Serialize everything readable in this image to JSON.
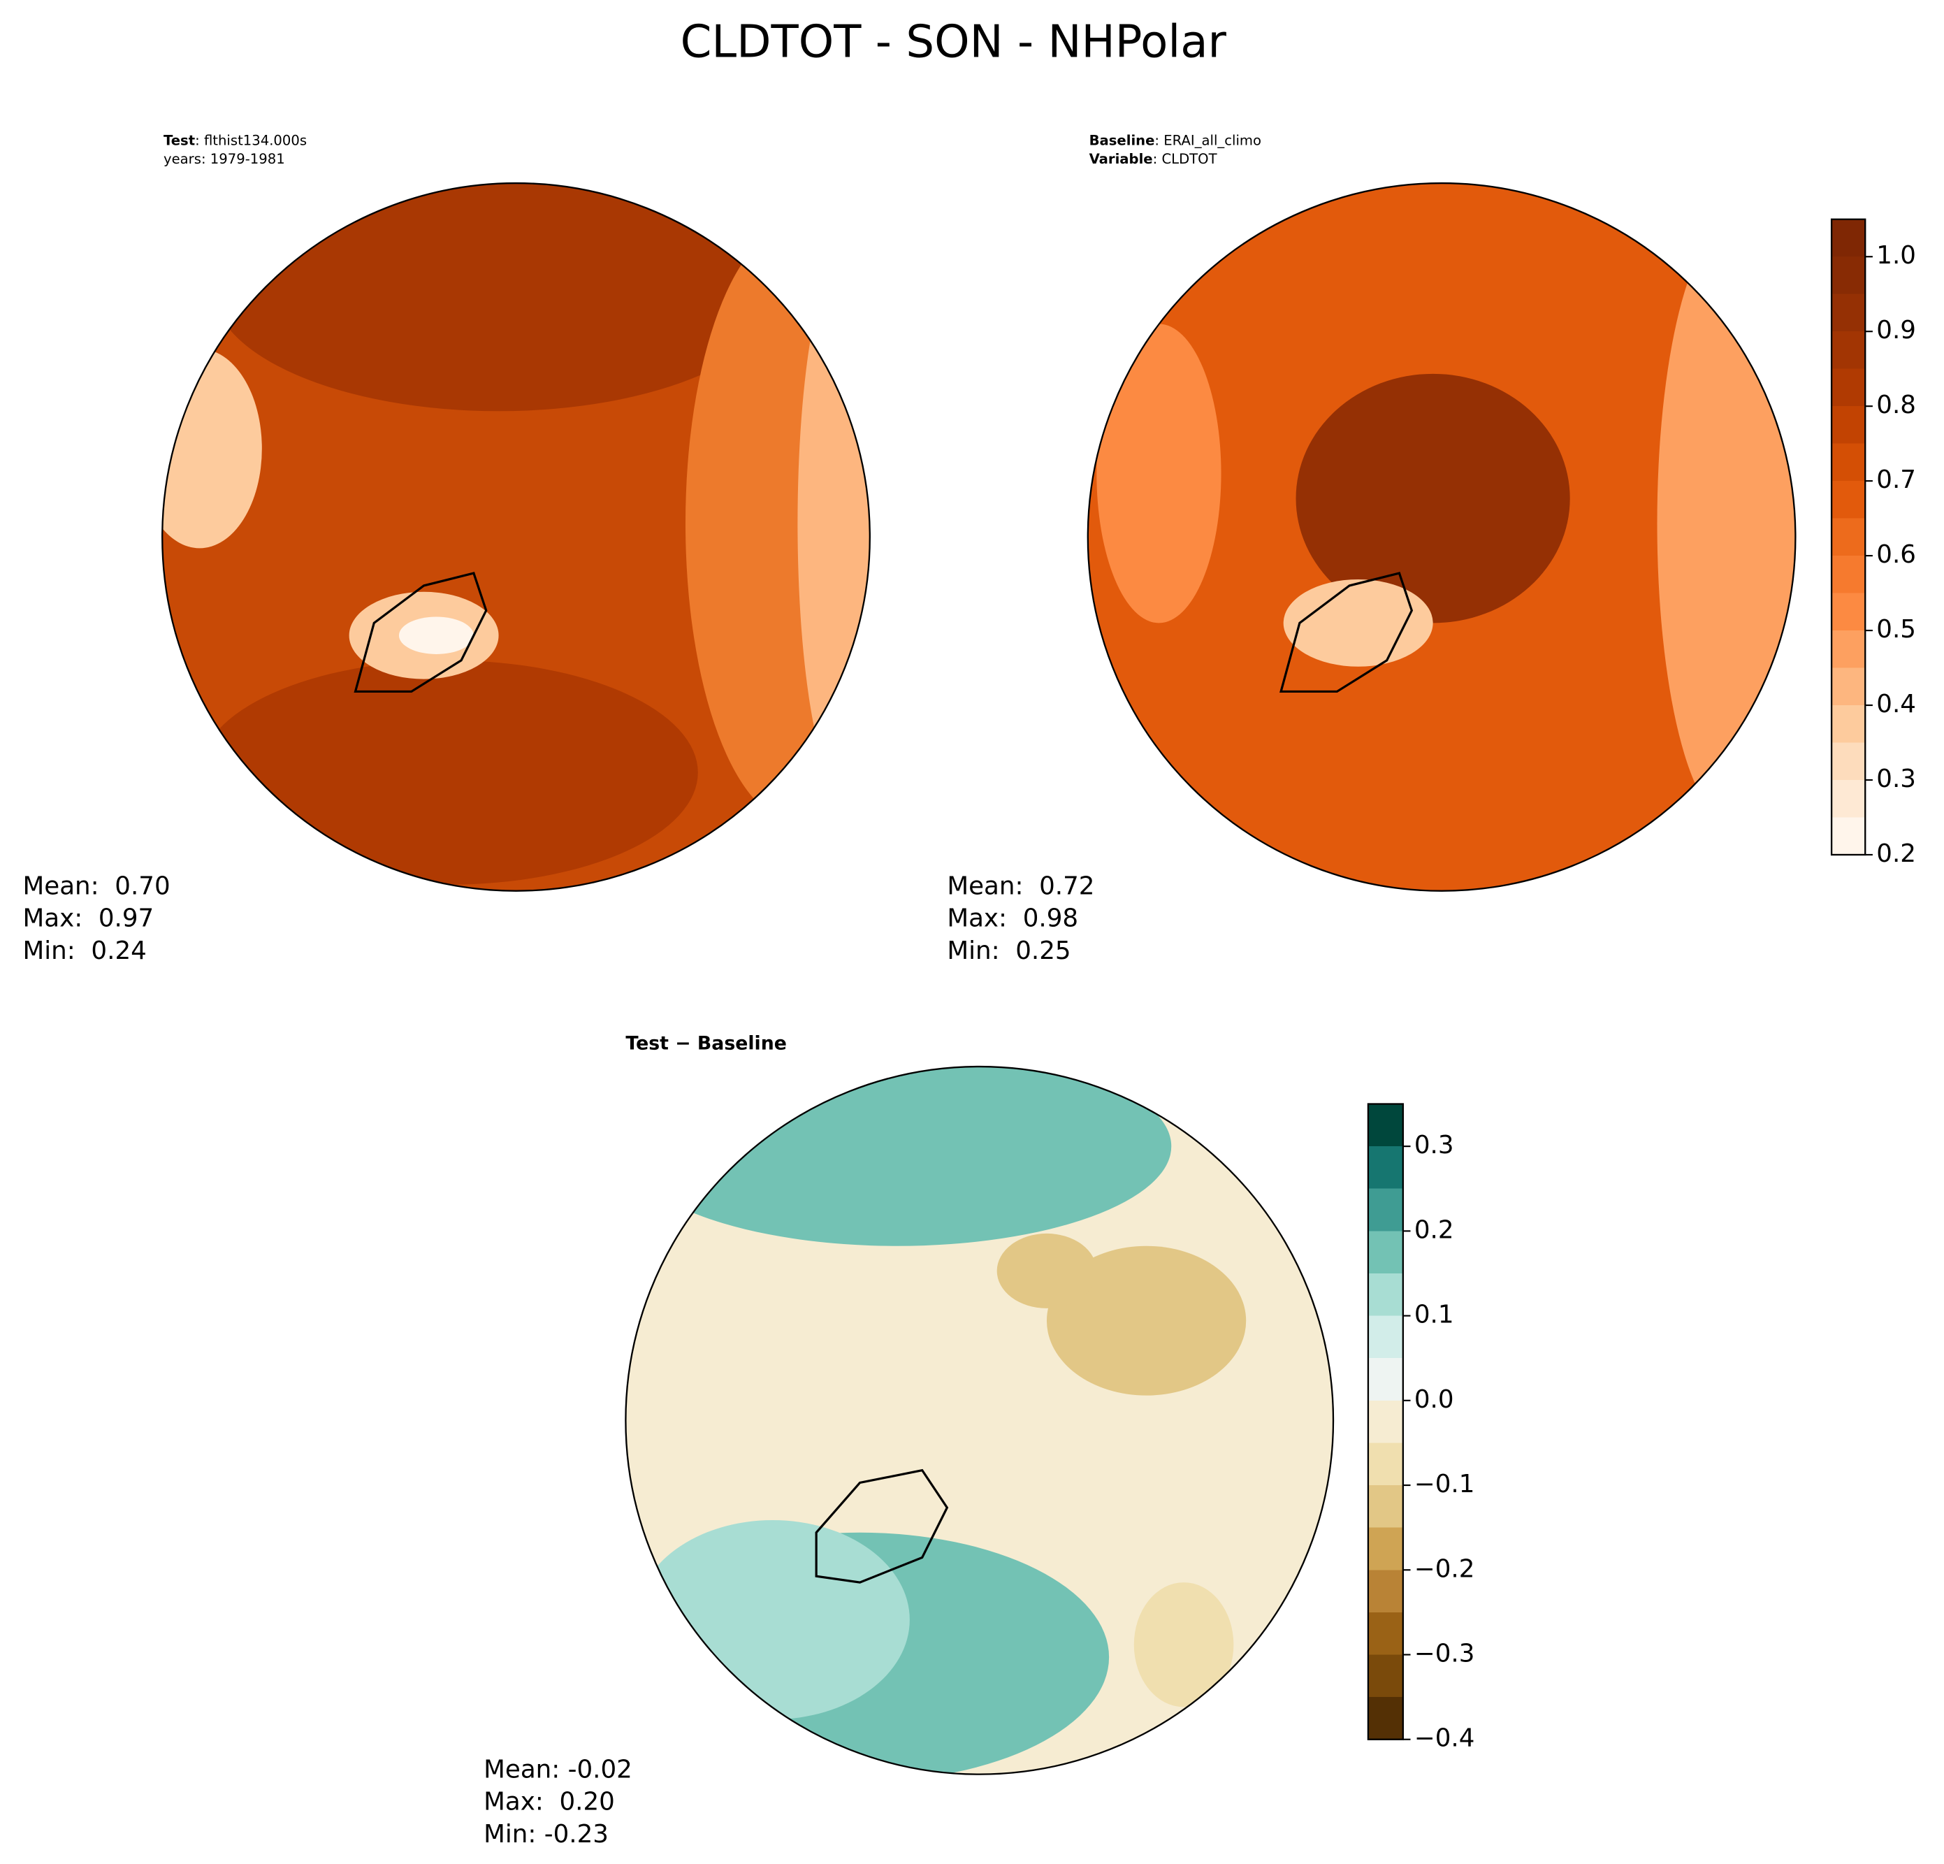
{
  "title": "CLDTOT - SON - NHPolar",
  "chart_data": [
    {
      "type": "polar-map",
      "annotation_lines": [
        {
          "key": "Test",
          "text": ": flthist134.000s"
        },
        {
          "text": "years: 1979-1981"
        }
      ],
      "stats": [
        "Mean:  0.70",
        "Max:  0.97",
        "Min:  0.24"
      ]
    },
    {
      "type": "polar-map",
      "annotation_lines": [
        {
          "key": "Baseline",
          "text": ": ERAI_all_climo"
        },
        {
          "key": "Variable",
          "text": ": CLDTOT"
        }
      ],
      "stats": [
        "Mean:  0.72",
        "Max:  0.98",
        "Min:  0.25"
      ],
      "colorbar": {
        "levels": [
          0.2,
          0.25,
          0.3,
          0.35,
          0.4,
          0.45,
          0.5,
          0.55,
          0.6,
          0.65,
          0.7,
          0.75,
          0.8,
          0.85,
          0.9,
          0.95,
          1.0,
          1.05
        ],
        "colors": [
          "#fff5eb",
          "#fee9d4",
          "#fddcbc",
          "#fdcb9d",
          "#fdb67f",
          "#fda060",
          "#fc8a42",
          "#f67a2e",
          "#ed6b1c",
          "#e25a0c",
          "#d44f05",
          "#c24302",
          "#b03a02",
          "#a23503",
          "#953004",
          "#882b04",
          "#7f2704"
        ],
        "ylim": [
          0.2,
          1.05
        ],
        "yticks": [
          0.2,
          0.3,
          0.4,
          0.5,
          0.6,
          0.7,
          0.8,
          0.9,
          {
            "value": 1.0,
            "label": "1.0"
          }
        ]
      }
    },
    {
      "type": "polar-map",
      "title": "Test − Baseline",
      "stats": [
        "Mean: -0.02",
        "Max:  0.20",
        "Min: -0.23"
      ],
      "colorbar": {
        "levels": [
          -0.4,
          -0.35,
          -0.3,
          -0.25,
          -0.2,
          -0.15,
          -0.1,
          -0.05,
          0.0,
          0.05,
          0.1,
          0.15,
          0.2,
          0.25,
          0.3,
          0.35
        ],
        "colors": [
          "#543005",
          "#7a4a0b",
          "#9a6216",
          "#b98336",
          "#cfa454",
          "#e2c786",
          "#f0dfaf",
          "#f6ecd2",
          "#eef4f2",
          "#d2ede9",
          "#a8ddd3",
          "#73c2b4",
          "#3f9c93",
          "#167670",
          "#00473c"
        ],
        "ylim": [
          -0.4,
          0.35
        ],
        "yticks": [
          {
            "value": -0.4,
            "label": "−0.4"
          },
          {
            "value": -0.3,
            "label": "−0.3"
          },
          {
            "value": -0.2,
            "label": "−0.2"
          },
          {
            "value": -0.1,
            "label": "−0.1"
          },
          {
            "value": 0.0,
            "label": "0.0"
          },
          0.1,
          0.2,
          0.3
        ]
      }
    }
  ]
}
